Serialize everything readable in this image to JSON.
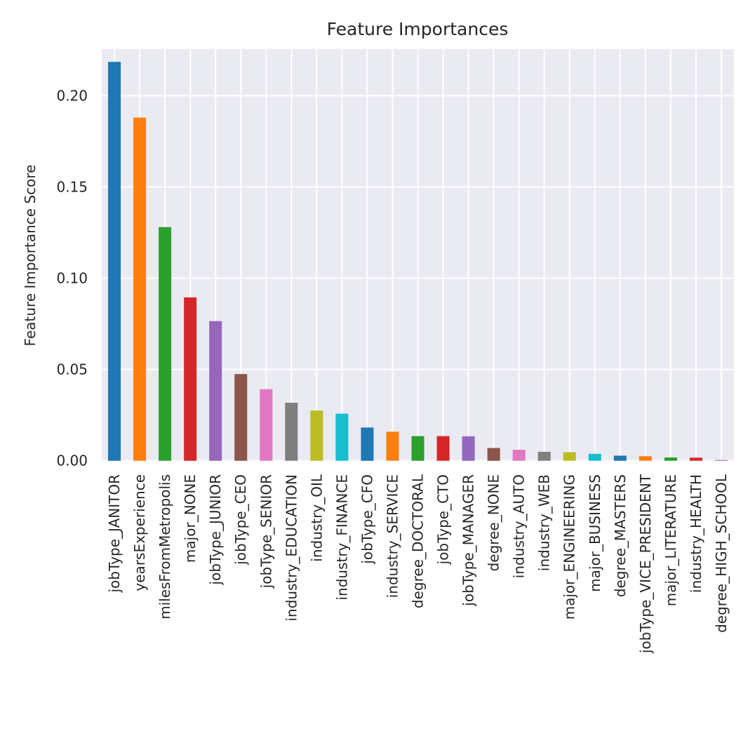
{
  "chart_data": {
    "type": "bar",
    "title": "Feature Importances",
    "xlabel": "",
    "ylabel": "Feature Importance Score",
    "ylim": [
      -0.0005,
      0.2255
    ],
    "yticks": [
      "0.00",
      "0.05",
      "0.10",
      "0.15",
      "0.20"
    ],
    "grid": true,
    "categories": [
      "jobType_JANITOR",
      "yearsExperience",
      "milesFromMetropolis",
      "major_NONE",
      "jobType_JUNIOR",
      "jobType_CEO",
      "jobType_SENIOR",
      "industry_EDUCATION",
      "industry_OIL",
      "industry_FINANCE",
      "jobType_CFO",
      "industry_SERVICE",
      "degree_DOCTORAL",
      "jobType_CTO",
      "jobType_MANAGER",
      "degree_NONE",
      "industry_AUTO",
      "industry_WEB",
      "major_ENGINEERING",
      "major_BUSINESS",
      "degree_MASTERS",
      "jobType_VICE_PRESIDENT",
      "major_LITERATURE",
      "industry_HEALTH",
      "degree_HIGH_SCHOOL"
    ],
    "values": [
      0.2185,
      0.188,
      0.128,
      0.0895,
      0.0765,
      0.0475,
      0.0392,
      0.0318,
      0.0275,
      0.0258,
      0.0182,
      0.0159,
      0.0135,
      0.0135,
      0.0134,
      0.007,
      0.006,
      0.0049,
      0.0047,
      0.0038,
      0.0028,
      0.0025,
      0.0018,
      0.0017,
      0.0004
    ],
    "colors": [
      "#1f77b4",
      "#ff7f0e",
      "#2ca02c",
      "#d62728",
      "#9467bd",
      "#8c564b",
      "#e377c2",
      "#7f7f7f",
      "#bcbd22",
      "#17becf"
    ]
  }
}
